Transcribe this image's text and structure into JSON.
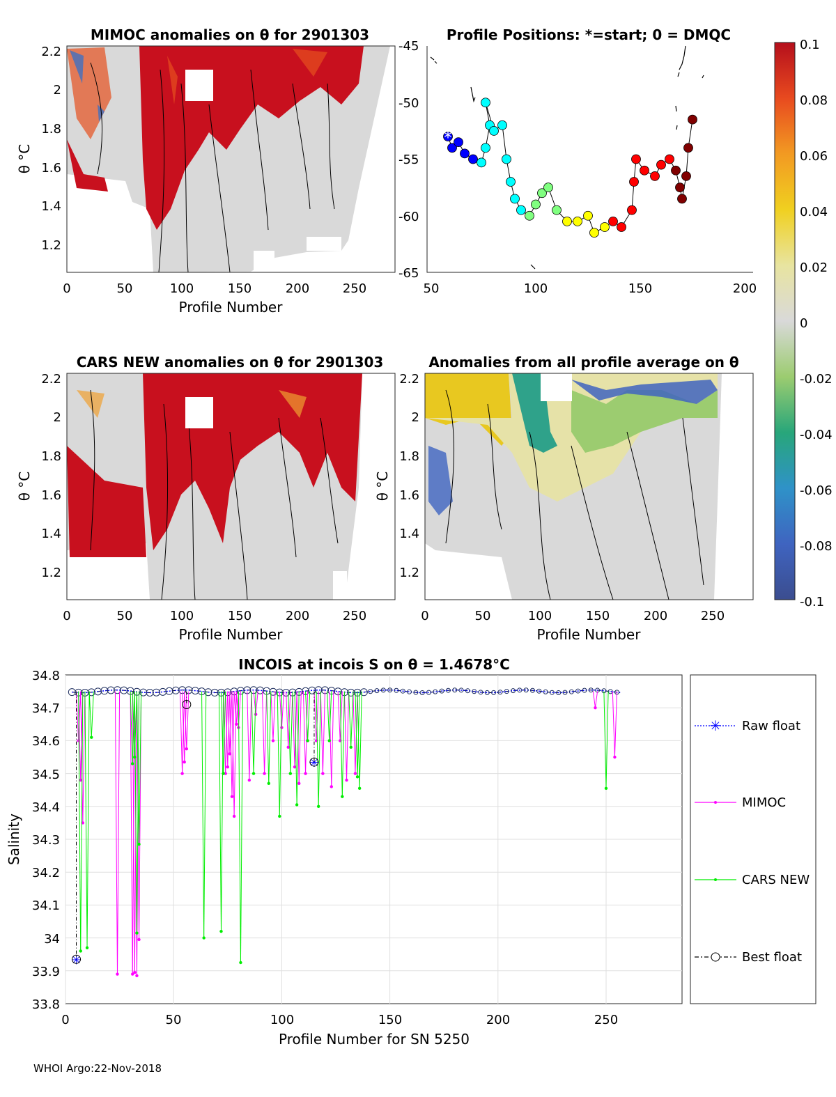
{
  "footer": "WHOI Argo:22-Nov-2018",
  "colorbar": {
    "ticks": [
      "0.1",
      "0.08",
      "0.06",
      "0.04",
      "0.02",
      "0",
      "-0.02",
      "-0.04",
      "-0.06",
      "-0.08",
      "-0.1"
    ],
    "range": [
      -0.1,
      0.1
    ]
  },
  "panels": {
    "mimoc": {
      "title": "MIMOC anomalies on θ  for 2901303",
      "xlabel": "Profile Number",
      "ylabel": "θ °C",
      "xticks": [
        "0",
        "50",
        "100",
        "150",
        "200",
        "250"
      ],
      "yticks": [
        "2.2",
        "2",
        "1.8",
        "1.6",
        "1.4",
        "1.2"
      ]
    },
    "positions": {
      "title": "Profile Positions: *=start; 0 = DMQC",
      "xticks": [
        "50",
        "100",
        "150",
        "200"
      ],
      "yticks": [
        "-45",
        "-50",
        "-55",
        "-60",
        "-65"
      ]
    },
    "cars": {
      "title": "CARS NEW anomalies on θ for 2901303",
      "xlabel": "Profile Number",
      "ylabel": "θ °C",
      "xticks": [
        "0",
        "50",
        "100",
        "150",
        "200",
        "250"
      ],
      "yticks": [
        "2.2",
        "2",
        "1.8",
        "1.6",
        "1.4",
        "1.2"
      ]
    },
    "allavg": {
      "title": "Anomalies from all profile average on θ",
      "xlabel": "Profile Number",
      "ylabel": "θ °C",
      "xticks": [
        "0",
        "50",
        "100",
        "150",
        "200",
        "250"
      ],
      "yticks": [
        "2.2",
        "2",
        "1.8",
        "1.6",
        "1.4",
        "1.2"
      ]
    },
    "incois": {
      "title": "INCOIS at incois S on θ = 1.4678°C",
      "xlabel": "Profile Number for SN 5250",
      "ylabel": "Salinity",
      "xticks": [
        "0",
        "50",
        "100",
        "150",
        "200",
        "250"
      ],
      "yticks": [
        "34.8",
        "34.7",
        "34.6",
        "34.5",
        "34.4",
        "34.3",
        "34.2",
        "34.1",
        "34",
        "33.9",
        "33.8"
      ]
    }
  },
  "legend": {
    "raw": "Raw float",
    "mimoc": "MIMOC",
    "cars": "CARS NEW",
    "best": "Best float"
  },
  "colors": {
    "raw": "#0000ff",
    "mimoc": "#ff00ff",
    "cars": "#00ee00",
    "best": "#000000",
    "missing": "#ffffff",
    "neutral": "#d9d9d9"
  },
  "chart_data": [
    {
      "type": "heatmap",
      "title": "MIMOC anomalies on θ  for 2901303",
      "xlabel": "Profile Number",
      "ylabel": "θ °C",
      "xlim": [
        0,
        285
      ],
      "ylim": [
        1.05,
        2.22
      ],
      "clim": [
        -0.1,
        0.1
      ]
    },
    {
      "type": "scatter",
      "title": "Profile Positions: *=start; 0 = DMQC",
      "xlim": [
        45,
        205
      ],
      "ylim": [
        -65,
        -45
      ],
      "start": [
        58,
        -53
      ],
      "track": [
        {
          "x": 58,
          "y": -53
        },
        {
          "x": 60,
          "y": -54
        },
        {
          "x": 63,
          "y": -53.5
        },
        {
          "x": 66,
          "y": -54.5
        },
        {
          "x": 70,
          "y": -55
        },
        {
          "x": 74,
          "y": -55.3
        },
        {
          "x": 76,
          "y": -54
        },
        {
          "x": 78,
          "y": -52
        },
        {
          "x": 76,
          "y": -50
        },
        {
          "x": 80,
          "y": -52.5
        },
        {
          "x": 84,
          "y": -52
        },
        {
          "x": 86,
          "y": -55
        },
        {
          "x": 88,
          "y": -57
        },
        {
          "x": 90,
          "y": -58.5
        },
        {
          "x": 93,
          "y": -59.5
        },
        {
          "x": 97,
          "y": -60
        },
        {
          "x": 100,
          "y": -59
        },
        {
          "x": 103,
          "y": -58
        },
        {
          "x": 106,
          "y": -57.5
        },
        {
          "x": 110,
          "y": -59.5
        },
        {
          "x": 115,
          "y": -60.5
        },
        {
          "x": 120,
          "y": -60.5
        },
        {
          "x": 125,
          "y": -60
        },
        {
          "x": 128,
          "y": -61.5
        },
        {
          "x": 133,
          "y": -61
        },
        {
          "x": 137,
          "y": -60.5
        },
        {
          "x": 141,
          "y": -61
        },
        {
          "x": 146,
          "y": -59.5
        },
        {
          "x": 147,
          "y": -57
        },
        {
          "x": 148,
          "y": -55
        },
        {
          "x": 152,
          "y": -56
        },
        {
          "x": 157,
          "y": -56.5
        },
        {
          "x": 160,
          "y": -55.5
        },
        {
          "x": 164,
          "y": -55
        },
        {
          "x": 167,
          "y": -56
        },
        {
          "x": 169,
          "y": -57.5
        },
        {
          "x": 170,
          "y": -58.5
        },
        {
          "x": 172,
          "y": -56.5
        },
        {
          "x": 173,
          "y": -54
        },
        {
          "x": 175,
          "y": -51.5
        }
      ]
    },
    {
      "type": "heatmap",
      "title": "CARS NEW anomalies on θ for 2901303",
      "xlabel": "Profile Number",
      "ylabel": "θ °C",
      "xlim": [
        0,
        285
      ],
      "ylim": [
        1.05,
        2.22
      ],
      "clim": [
        -0.1,
        0.1
      ]
    },
    {
      "type": "heatmap",
      "title": "Anomalies from all profile average on θ",
      "xlabel": "Profile Number",
      "ylabel": "θ °C",
      "xlim": [
        0,
        285
      ],
      "ylim": [
        1.05,
        2.22
      ],
      "clim": [
        -0.1,
        0.1
      ]
    },
    {
      "type": "line",
      "title": "INCOIS at incois S on θ = 1.4678°C",
      "xlabel": "Profile Number for SN 5250",
      "ylabel": "Salinity",
      "xlim": [
        0,
        285
      ],
      "ylim": [
        33.8,
        34.8
      ],
      "grid": true,
      "legend_position": "right",
      "series": [
        {
          "name": "Raw float",
          "x": [
            5,
            115
          ],
          "values": [
            33.935,
            34.535
          ]
        },
        {
          "name": "MIMOC",
          "x": [
            6,
            7,
            8,
            24,
            31,
            32,
            33,
            34,
            54,
            55,
            56,
            74,
            75,
            76,
            77,
            78,
            79,
            80,
            85,
            88,
            92,
            96,
            100,
            103,
            106,
            108,
            111,
            116,
            119,
            123,
            127,
            130,
            134,
            245,
            254
          ],
          "values": [
            34.6,
            34.48,
            34.35,
            33.89,
            33.89,
            33.895,
            33.885,
            33.995,
            34.5,
            34.535,
            34.575,
            34.5,
            34.52,
            34.56,
            34.43,
            34.37,
            34.65,
            34.64,
            34.48,
            34.68,
            34.5,
            34.6,
            34.64,
            34.58,
            34.52,
            34.47,
            34.5,
            34.6,
            34.5,
            34.46,
            34.6,
            34.48,
            34.5,
            34.7,
            34.55
          ]
        },
        {
          "name": "CARS NEW",
          "x": [
            7,
            10,
            12,
            31,
            32,
            33,
            34,
            64,
            72,
            73,
            81,
            87,
            94,
            99,
            104,
            107,
            112,
            117,
            122,
            128,
            132,
            135,
            136,
            250
          ],
          "values": [
            33.96,
            33.97,
            34.61,
            34.53,
            34.55,
            34.015,
            34.285,
            34.0,
            34.02,
            34.5,
            33.925,
            34.5,
            34.47,
            34.37,
            34.5,
            34.405,
            34.6,
            34.4,
            34.6,
            34.43,
            34.58,
            34.49,
            34.455,
            34.455
          ]
        },
        {
          "name": "Best float",
          "x": [
            5,
            56,
            115
          ],
          "values": [
            33.935,
            34.71,
            34.535
          ]
        }
      ]
    }
  ]
}
